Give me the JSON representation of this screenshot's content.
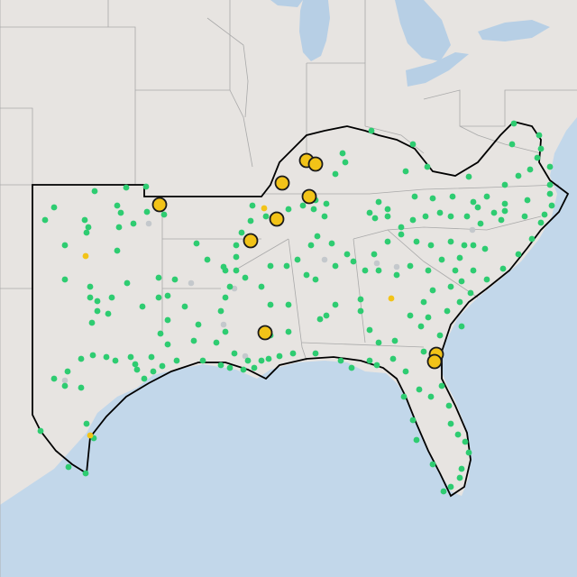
{
  "map": {
    "type": "point-map",
    "colors": {
      "land": "#e7e4e1",
      "land_alt": "#ece9e6",
      "water": "#c2d7ea",
      "lake": "#b7cfe5",
      "border": "#a9a9a9",
      "region_outline": "#000000",
      "green_marker": "#2ecc71",
      "yellow_marker": "#f2c318",
      "gray_marker": "#c4c8cc",
      "marker_stroke": "#1a1a1a"
    },
    "large_yellow_markers": 13,
    "small_yellow_markers": 3,
    "green_markers": 220,
    "gray_markers": 10
  }
}
